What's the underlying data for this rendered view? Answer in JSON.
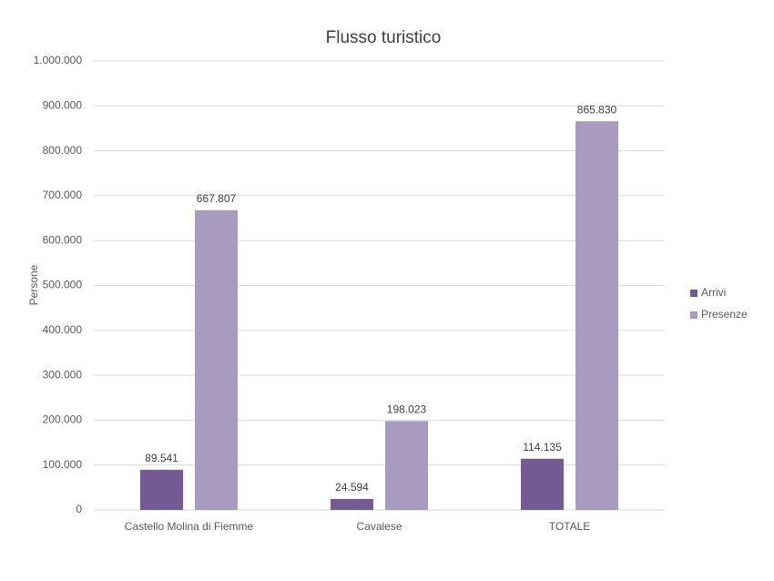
{
  "chart_data": {
    "type": "bar",
    "title": "Flusso turistico",
    "y_label": "Persone",
    "categories": [
      "Castello Molina di Fiemme",
      "Cavalese",
      "TOTALE"
    ],
    "series": [
      {
        "name": "Arrivi",
        "color": "#735a92",
        "values": [
          89541,
          24594,
          114135
        ],
        "value_labels": [
          "89.541",
          "24.594",
          "114.135"
        ]
      },
      {
        "name": "Presenze",
        "color": "#a89bbf",
        "values": [
          667807,
          198023,
          865830
        ],
        "value_labels": [
          "667.807",
          "198.023",
          "865.830"
        ]
      }
    ],
    "ylim": [
      0,
      1000000
    ],
    "yticks": [
      0,
      {
        "value": 100000,
        "label": "100.000"
      },
      {
        "value": 200000,
        "label": "200.000"
      },
      {
        "value": 300000,
        "label": "300.000"
      },
      {
        "value": 400000,
        "label": "400.000"
      },
      {
        "value": 500000,
        "label": "500.000"
      },
      {
        "value": 600000,
        "label": "600.000"
      },
      {
        "value": 700000,
        "label": "700.000"
      },
      {
        "value": 800000,
        "label": "800.000"
      },
      {
        "value": 900000,
        "label": "900.000"
      },
      {
        "value": 1000000,
        "label": "1.000.000"
      }
    ],
    "grid": true,
    "legend": "right"
  }
}
